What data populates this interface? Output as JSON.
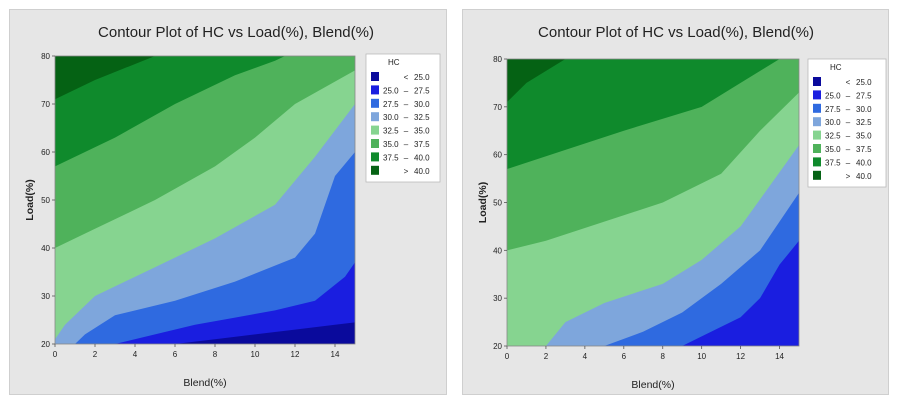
{
  "chart_data": [
    {
      "type": "contour",
      "title": "Contour Plot of HC vs Load(%), Blend(%)",
      "xlabel": "Blend(%)",
      "ylabel": "Load(%)",
      "xlim": [
        0,
        15
      ],
      "ylim": [
        20,
        80
      ],
      "xticks": [
        "0",
        "2",
        "4",
        "6",
        "8",
        "10",
        "12",
        "14"
      ],
      "yticks": [
        "20",
        "30",
        "40",
        "50",
        "60",
        "70",
        "80"
      ],
      "legend": {
        "title": "HC",
        "placement": "right",
        "entries": [
          {
            "label": "< 25.0",
            "lo": "",
            "dash": "<",
            "hi": "25.0",
            "color": "#0a0a9c"
          },
          {
            "label": "25.0 – 27.5",
            "lo": "25.0",
            "dash": "–",
            "hi": "27.5",
            "color": "#1a1ee0"
          },
          {
            "label": "27.5 – 30.0",
            "lo": "27.5",
            "dash": "–",
            "hi": "30.0",
            "color": "#2f6ae0"
          },
          {
            "label": "30.0 – 32.5",
            "lo": "30.0",
            "dash": "–",
            "hi": "32.5",
            "color": "#7ea6dc"
          },
          {
            "label": "32.5 – 35.0",
            "lo": "32.5",
            "dash": "–",
            "hi": "35.0",
            "color": "#86d490"
          },
          {
            "label": "35.0 – 37.5",
            "lo": "35.0",
            "dash": "–",
            "hi": "37.5",
            "color": "#4fb25b"
          },
          {
            "label": "37.5 – 40.0",
            "lo": "37.5",
            "dash": "–",
            "hi": "40.0",
            "color": "#0f8a2c"
          },
          {
            "label": "> 40.0",
            "lo": "",
            "dash": ">",
            "hi": "40.0",
            "color": "#056214"
          }
        ]
      },
      "contour_lines": [
        {
          "level": 25.0,
          "points": [
            [
              6,
              20
            ],
            [
              8,
              21
            ],
            [
              10,
              22
            ],
            [
              12,
              23
            ],
            [
              14,
              24
            ],
            [
              15,
              24.5
            ]
          ]
        },
        {
          "level": 27.5,
          "points": [
            [
              3,
              20
            ],
            [
              5,
              22
            ],
            [
              7,
              24
            ],
            [
              9,
              25.5
            ],
            [
              11,
              27
            ],
            [
              13,
              29
            ],
            [
              14.5,
              34
            ],
            [
              15,
              37
            ]
          ]
        },
        {
          "level": 30.0,
          "points": [
            [
              1,
              20
            ],
            [
              1.5,
              22
            ],
            [
              3,
              26
            ],
            [
              6,
              29
            ],
            [
              9,
              33
            ],
            [
              12,
              38
            ],
            [
              13,
              43
            ],
            [
              14,
              55
            ],
            [
              15,
              60
            ]
          ]
        },
        {
          "level": 32.5,
          "points": [
            [
              0,
              21
            ],
            [
              0.5,
              24
            ],
            [
              2,
              30
            ],
            [
              5,
              36
            ],
            [
              8,
              42
            ],
            [
              11,
              49
            ],
            [
              13,
              59
            ],
            [
              15,
              70
            ]
          ]
        },
        {
          "level": 35.0,
          "points": [
            [
              0,
              40
            ],
            [
              2,
              44
            ],
            [
              5,
              50
            ],
            [
              8,
              57
            ],
            [
              10,
              63
            ],
            [
              12,
              70
            ],
            [
              15,
              77
            ]
          ]
        },
        {
          "level": 37.5,
          "points": [
            [
              0,
              57
            ],
            [
              3,
              63
            ],
            [
              6,
              70
            ],
            [
              9,
              76
            ],
            [
              11,
              79
            ],
            [
              11.5,
              80
            ]
          ]
        },
        {
          "level": 40.0,
          "points": [
            [
              0,
              71
            ],
            [
              2,
              75
            ],
            [
              5,
              80
            ]
          ]
        }
      ]
    },
    {
      "type": "contour",
      "title": "Contour Plot of HC vs Load(%), Blend(%)",
      "xlabel": "Blend(%)",
      "ylabel": "Load(%)",
      "xlim": [
        0,
        15
      ],
      "ylim": [
        20,
        80
      ],
      "xticks": [
        "0",
        "2",
        "4",
        "6",
        "8",
        "10",
        "12",
        "14"
      ],
      "yticks": [
        "20",
        "30",
        "40",
        "50",
        "60",
        "70",
        "80"
      ],
      "legend": {
        "title": "HC",
        "placement": "right",
        "entries": [
          {
            "label": "< 25.0",
            "lo": "",
            "dash": "<",
            "hi": "25.0",
            "color": "#0a0a9c"
          },
          {
            "label": "25.0 – 27.5",
            "lo": "25.0",
            "dash": "–",
            "hi": "27.5",
            "color": "#1a1ee0"
          },
          {
            "label": "27.5 – 30.0",
            "lo": "27.5",
            "dash": "–",
            "hi": "30.0",
            "color": "#2f6ae0"
          },
          {
            "label": "30.0 – 32.5",
            "lo": "30.0",
            "dash": "–",
            "hi": "32.5",
            "color": "#7ea6dc"
          },
          {
            "label": "32.5 – 35.0",
            "lo": "32.5",
            "dash": "–",
            "hi": "35.0",
            "color": "#86d490"
          },
          {
            "label": "35.0 – 37.5",
            "lo": "35.0",
            "dash": "–",
            "hi": "37.5",
            "color": "#4fb25b"
          },
          {
            "label": "37.5 – 40.0",
            "lo": "37.5",
            "dash": "–",
            "hi": "40.0",
            "color": "#0f8a2c"
          },
          {
            "label": "> 40.0",
            "lo": "",
            "dash": ">",
            "hi": "40.0",
            "color": "#056214"
          }
        ]
      },
      "contour_lines": [
        {
          "level": 27.5,
          "points": [
            [
              9,
              20
            ],
            [
              10,
              22
            ],
            [
              12,
              26
            ],
            [
              13,
              30
            ],
            [
              14,
              37
            ],
            [
              15,
              42
            ]
          ]
        },
        {
          "level": 30.0,
          "points": [
            [
              5,
              20
            ],
            [
              7,
              23
            ],
            [
              9,
              27
            ],
            [
              11,
              33
            ],
            [
              13,
              40
            ],
            [
              15,
              52
            ]
          ]
        },
        {
          "level": 32.5,
          "points": [
            [
              2,
              20
            ],
            [
              3,
              25
            ],
            [
              5,
              29
            ],
            [
              8,
              33
            ],
            [
              10,
              38
            ],
            [
              12,
              45
            ],
            [
              15,
              62
            ]
          ]
        },
        {
          "level": 35.0,
          "points": [
            [
              0,
              40
            ],
            [
              2,
              42
            ],
            [
              5,
              46
            ],
            [
              8,
              50
            ],
            [
              11,
              56
            ],
            [
              13,
              65
            ],
            [
              15,
              73
            ]
          ]
        },
        {
          "level": 37.5,
          "points": [
            [
              0,
              57
            ],
            [
              3,
              61
            ],
            [
              6,
              65
            ],
            [
              10,
              70
            ],
            [
              12,
              75
            ],
            [
              14,
              80
            ]
          ]
        },
        {
          "level": 40.0,
          "points": [
            [
              0,
              71
            ],
            [
              1,
              75
            ],
            [
              3,
              80
            ]
          ]
        }
      ]
    }
  ]
}
